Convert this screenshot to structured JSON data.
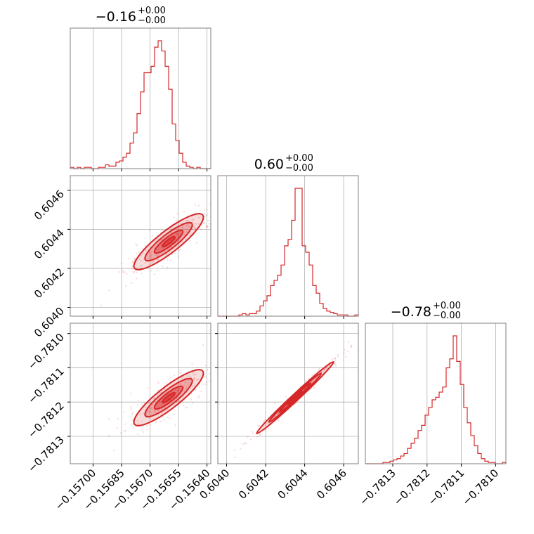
{
  "chart_data": {
    "type": "corner",
    "color": "#d62728",
    "grid": true,
    "parameters": [
      {
        "title": "−0.16",
        "upper": "+0.00",
        "lower": "−0.00"
      },
      {
        "title": "0.60",
        "upper": "+0.00",
        "lower": "−0.00"
      },
      {
        "title": "−0.78",
        "upper": "+0.00",
        "lower": "−0.00"
      }
    ],
    "axes": {
      "x0": {
        "range": [
          -0.15712,
          -0.15638
        ],
        "ticks": [
          -0.157,
          -0.15685,
          -0.1567,
          -0.15655,
          -0.1564
        ],
        "tick_labels": [
          "−0.15700",
          "−0.15685",
          "−0.15670",
          "−0.15655",
          "−0.15640"
        ]
      },
      "x1": {
        "range": [
          0.603955,
          0.604675
        ],
        "ticks": [
          0.604,
          0.6042,
          0.6044,
          0.6046
        ],
        "tick_labels": [
          "0.6040",
          "0.6042",
          "0.6044",
          "0.6046"
        ]
      },
      "x2": {
        "range": [
          -0.78138,
          -0.78097
        ],
        "ticks": [
          -0.7813,
          -0.7812,
          -0.7811,
          -0.781
        ],
        "tick_labels": [
          "−0.7813",
          "−0.7812",
          "−0.7811",
          "−0.7810"
        ]
      }
    },
    "histograms": [
      {
        "name": "param0",
        "counts": [
          1,
          0,
          1,
          0,
          1,
          1,
          0,
          0,
          1,
          1,
          3,
          2,
          2,
          5,
          6,
          9,
          12,
          20,
          28,
          43,
          60,
          75,
          75,
          80,
          95,
          100,
          92,
          80,
          62,
          35,
          22,
          12,
          5,
          2,
          1,
          0,
          1,
          0,
          0,
          0
        ]
      },
      {
        "name": "param1",
        "counts": [
          0,
          0,
          0,
          0,
          0,
          0,
          1,
          2,
          1,
          2,
          2,
          4,
          8,
          12,
          16,
          24,
          28,
          32,
          40,
          55,
          60,
          75,
          100,
          100,
          55,
          50,
          40,
          24,
          18,
          10,
          6,
          4,
          3,
          2,
          1,
          1,
          1,
          0,
          0,
          1
        ]
      },
      {
        "name": "param2",
        "counts": [
          0,
          0,
          0,
          0,
          0,
          1,
          1,
          2,
          3,
          4,
          6,
          8,
          12,
          16,
          20,
          26,
          30,
          38,
          44,
          50,
          52,
          56,
          60,
          75,
          82,
          100,
          80,
          62,
          44,
          32,
          22,
          14,
          8,
          4,
          2,
          1,
          1,
          0,
          0,
          1
        ]
      }
    ],
    "pairs": [
      {
        "x": 0,
        "y": 1,
        "correlation": 0.92
      },
      {
        "x": 0,
        "y": 2,
        "correlation": 0.92
      },
      {
        "x": 1,
        "y": 2,
        "correlation": 0.995
      }
    ]
  }
}
